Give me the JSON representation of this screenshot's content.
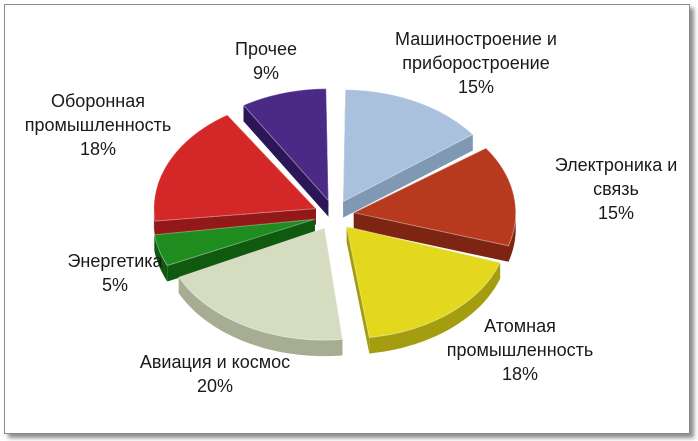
{
  "chart_data": {
    "type": "pie",
    "title": "",
    "categories": [
      "Машиностроение и приборостроение",
      "Электроника и связь",
      "Атомная промышленность",
      "Авиация и космос",
      "Энергетика",
      "Оборонная промышленность",
      "Прочее"
    ],
    "values": [
      15,
      15,
      18,
      20,
      5,
      18,
      9
    ],
    "value_labels": [
      "15%",
      "15%",
      "18%",
      "20%",
      "5%",
      "18%",
      "9%"
    ],
    "label_lines": [
      [
        "Машиностроение и",
        "приборостроение",
        "15%"
      ],
      [
        "Электроника и",
        "связь",
        "15%"
      ],
      [
        "Атомная",
        "промышленность",
        "18%"
      ],
      [
        "Авиация и космос",
        "20%"
      ],
      [
        "Энергетика",
        "5%"
      ],
      [
        "Оборонная",
        "промышленность",
        "18%"
      ],
      [
        "Прочее",
        "9%"
      ]
    ],
    "colors": [
      "#a9c1dc",
      "#b83a1e",
      "#e3d81e",
      "#d6dcc0",
      "#1e8c1e",
      "#d42828",
      "#4a2a86"
    ],
    "side_colors": [
      "#7f98b4",
      "#7e2412",
      "#a59d10",
      "#a6ad92",
      "#0f5a0f",
      "#931818",
      "#2c1658"
    ],
    "style": "exploded 3d pie",
    "legend": "none"
  }
}
